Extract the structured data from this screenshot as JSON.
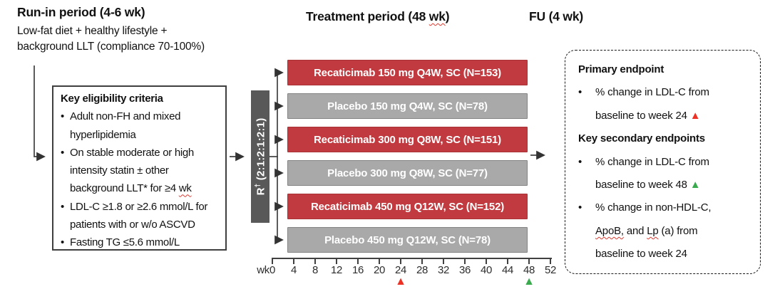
{
  "colors": {
    "active_bar": "#C13A3F",
    "active_bar_border": "#A93237",
    "placebo_bar": "#A9A9A9",
    "placebo_bar_border": "#848484",
    "randomization_bar": "#595959",
    "marker_red": "#ED3124",
    "marker_green": "#3AAA4E",
    "connector": "#404040"
  },
  "headers": {
    "runin_title": "Run-in period (4-6 wk)",
    "runin_sub1": "Low-fat diet + healthy lifestyle +",
    "runin_sub2": "background LLT (compliance 70-100%)",
    "treatment_title_segments": [
      {
        "t": "Treatment period (48 "
      },
      {
        "t": "wk",
        "sq": true
      },
      {
        "t": ")"
      }
    ],
    "fu_title": "FU (4 wk)"
  },
  "eligibility_box": {
    "lines": [
      {
        "type": "title",
        "segments": [
          {
            "t": "Key eligibility criteria",
            "b": true
          }
        ]
      },
      {
        "type": "bullet",
        "segments": [
          {
            "t": "Adult non-FH and mixed"
          }
        ]
      },
      {
        "type": "cont",
        "segments": [
          {
            "t": "hyperlipidemia"
          }
        ]
      },
      {
        "type": "bullet",
        "segments": [
          {
            "t": "On stable moderate or high"
          }
        ]
      },
      {
        "type": "cont",
        "segments": [
          {
            "t": "intensity statin ± other"
          }
        ]
      },
      {
        "type": "cont",
        "segments": [
          {
            "t": "background LLT* for ≥4 "
          },
          {
            "t": "wk",
            "sq": true
          }
        ]
      },
      {
        "type": "bullet",
        "segments": [
          {
            "t": "LDL-C ≥1.8 or ≥2.6 mmol/L for"
          }
        ]
      },
      {
        "type": "cont",
        "segments": [
          {
            "t": "patients with or w/o ASCVD"
          }
        ]
      },
      {
        "type": "bullet",
        "segments": [
          {
            "t": "Fasting TG ≤5.6 mmol/L"
          }
        ]
      }
    ]
  },
  "randomization": {
    "label": "R",
    "sup": "†",
    "ratio": " (2:1:2:1:2:1)"
  },
  "arms": [
    {
      "label": "Recaticimab 150 mg Q4W, SC (N=153)",
      "type": "active"
    },
    {
      "label": "Placebo 150 mg Q4W, SC (N=78)",
      "type": "placebo"
    },
    {
      "label": "Recaticimab 300 mg Q8W, SC (N=151)",
      "type": "active"
    },
    {
      "label": "Placebo 300 mg Q8W, SC (N=77)",
      "type": "placebo"
    },
    {
      "label": "Recaticimab 450 mg Q12W, SC (N=152)",
      "type": "active"
    },
    {
      "label": "Placebo 450 mg Q12W, SC (N=78)",
      "type": "placebo"
    }
  ],
  "axis": {
    "unit_label": "wk",
    "weeks": [
      0,
      4,
      8,
      12,
      16,
      20,
      24,
      28,
      32,
      36,
      40,
      44,
      48,
      52
    ],
    "markers": [
      {
        "week": 24,
        "color": "#ED3124",
        "name": "primary-endpoint-week-marker"
      },
      {
        "week": 48,
        "color": "#3AAA4E",
        "name": "secondary-endpoint-week-marker"
      }
    ]
  },
  "endpoints_box": {
    "lines": [
      {
        "type": "title",
        "segments": [
          {
            "t": "Primary endpoint",
            "b": true
          }
        ]
      },
      {
        "type": "bullet",
        "segments": [
          {
            "t": "% change in LDL-C from"
          }
        ]
      },
      {
        "type": "cont",
        "segments": [
          {
            "t": "baseline to week 24 "
          },
          {
            "t": "▲",
            "tri": "#ED3124"
          }
        ]
      },
      {
        "type": "title",
        "segments": [
          {
            "t": "Key secondary endpoints",
            "b": true
          }
        ]
      },
      {
        "type": "bullet",
        "segments": [
          {
            "t": "% change in LDL-C from"
          }
        ]
      },
      {
        "type": "cont",
        "segments": [
          {
            "t": "baseline to week 48 "
          },
          {
            "t": "▲",
            "tri": "#3AAA4E"
          }
        ]
      },
      {
        "type": "bullet",
        "segments": [
          {
            "t": "% change in non-HDL-C,"
          }
        ]
      },
      {
        "type": "cont",
        "segments": [
          {
            "t": "ApoB,",
            "sq": true
          },
          {
            "t": " and "
          },
          {
            "t": "Lp",
            "sq": true
          },
          {
            "t": " (a) from"
          }
        ]
      },
      {
        "type": "cont",
        "segments": [
          {
            "t": "baseline to week 24"
          }
        ]
      }
    ]
  }
}
